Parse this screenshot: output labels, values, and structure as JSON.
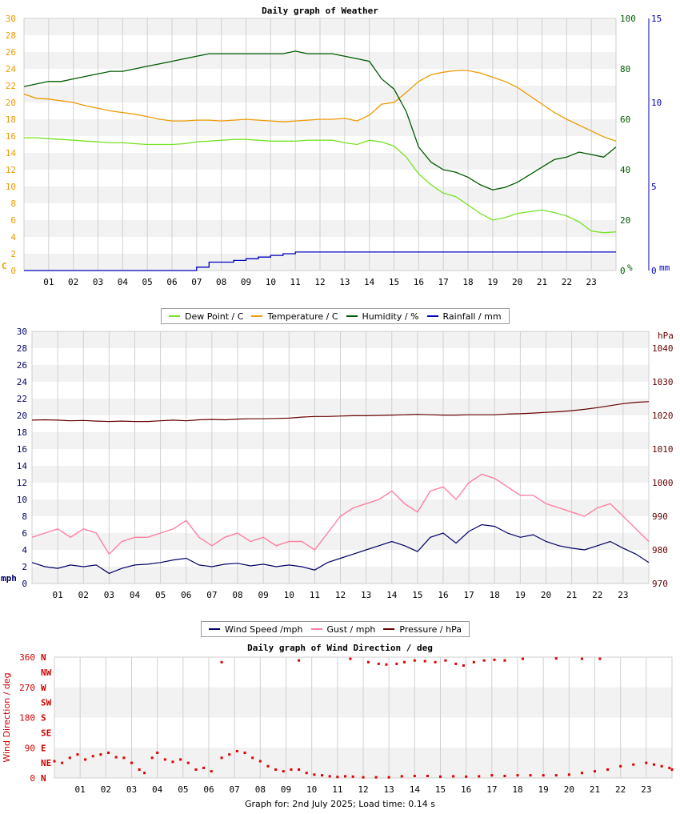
{
  "footer": "Graph for: 2nd July 2025; Load time: 0.14 s",
  "colors": {
    "dew": "#77e223",
    "temp": "#ee9a00",
    "hum": "#005a00",
    "rain": "#0000bb",
    "wind": "#000066",
    "gust": "#ff7fa0",
    "press": "#660000",
    "wdir": "#dd0000",
    "band": "#f2f2f2",
    "grid": "#d0d0d0"
  },
  "x_ticks": [
    "01",
    "02",
    "03",
    "04",
    "05",
    "06",
    "07",
    "08",
    "09",
    "10",
    "11",
    "12",
    "13",
    "14",
    "15",
    "16",
    "17",
    "18",
    "19",
    "20",
    "21",
    "22",
    "23"
  ],
  "legend1": [
    {
      "label": "Dew Point / C",
      "color": "#77e223"
    },
    {
      "label": "Temperature / C",
      "color": "#ee9a00"
    },
    {
      "label": "Humidity / %",
      "color": "#005a00"
    },
    {
      "label": "Rainfall / mm",
      "color": "#0000bb"
    }
  ],
  "legend2": [
    {
      "label": "Wind Speed /mph",
      "color": "#000066"
    },
    {
      "label": "Gust / mph",
      "color": "#ff7fa0"
    },
    {
      "label": "Pressure / hPa",
      "color": "#660000"
    }
  ],
  "chart_data": [
    {
      "type": "line",
      "title": "Daily graph of Weather",
      "xlabel": "",
      "x_ticks": [
        "01",
        "02",
        "03",
        "04",
        "05",
        "06",
        "07",
        "08",
        "09",
        "10",
        "11",
        "12",
        "13",
        "14",
        "15",
        "16",
        "17",
        "18",
        "19",
        "20",
        "21",
        "22",
        "23"
      ],
      "xlim": [
        0,
        24
      ],
      "grid": true,
      "legend": "bottom",
      "axes": {
        "left": {
          "unit_label": "C",
          "range": [
            0,
            30
          ],
          "ticks": [
            "0",
            "2",
            "4",
            "6",
            "8",
            "10",
            "12",
            "14",
            "16",
            "18",
            "20",
            "22",
            "24",
            "26",
            "28",
            "30"
          ],
          "color": "#ee9a00"
        },
        "right1": {
          "unit_label": "%",
          "range": [
            0,
            100
          ],
          "ticks": [
            "0",
            "20",
            "40",
            "60",
            "80",
            "100"
          ],
          "color": "#005a00"
        },
        "right2": {
          "unit_label": "mm",
          "range": [
            0,
            15
          ],
          "ticks": [
            "0",
            "5",
            "10",
            "15"
          ],
          "color": "#0000bb"
        }
      },
      "x": [
        0,
        0.5,
        1,
        1.5,
        2,
        2.5,
        3,
        3.5,
        4,
        4.5,
        5,
        5.5,
        6,
        6.5,
        7,
        7.5,
        8,
        8.5,
        9,
        9.5,
        10,
        10.5,
        11,
        11.5,
        12,
        12.5,
        13,
        13.5,
        14,
        14.5,
        15,
        15.5,
        16,
        16.5,
        17,
        17.5,
        18,
        18.5,
        19,
        19.5,
        20,
        20.5,
        21,
        21.5,
        22,
        22.5,
        23,
        23.5,
        24
      ],
      "series": [
        {
          "name": "Dew Point / C",
          "axis": "left",
          "color": "#77e223",
          "values": [
            15.8,
            15.8,
            15.7,
            15.6,
            15.5,
            15.4,
            15.3,
            15.2,
            15.2,
            15.1,
            15.0,
            15.0,
            15.0,
            15.1,
            15.3,
            15.4,
            15.5,
            15.6,
            15.6,
            15.5,
            15.4,
            15.4,
            15.4,
            15.5,
            15.5,
            15.5,
            15.2,
            15.0,
            15.5,
            15.3,
            14.8,
            13.5,
            11.5,
            10.2,
            9.2,
            8.8,
            7.8,
            6.8,
            6.0,
            6.3,
            6.8,
            7.0,
            7.2,
            6.9,
            6.5,
            5.8,
            4.7,
            4.5,
            4.6
          ]
        },
        {
          "name": "Temperature / C",
          "axis": "left",
          "color": "#ee9a00",
          "values": [
            21.0,
            20.5,
            20.4,
            20.2,
            20.0,
            19.6,
            19.3,
            19.0,
            18.8,
            18.6,
            18.3,
            18.0,
            17.8,
            17.8,
            17.9,
            17.9,
            17.8,
            17.9,
            18.0,
            17.9,
            17.8,
            17.7,
            17.8,
            17.9,
            18.0,
            18.0,
            18.1,
            17.8,
            18.5,
            19.8,
            20.0,
            21.2,
            22.5,
            23.3,
            23.6,
            23.8,
            23.8,
            23.5,
            23.0,
            22.5,
            21.8,
            20.8,
            19.8,
            18.8,
            18.0,
            17.3,
            16.6,
            15.9,
            15.4
          ]
        },
        {
          "name": "Humidity / %",
          "axis": "right1",
          "color": "#005a00",
          "values": [
            73,
            74,
            75,
            75,
            76,
            77,
            78,
            79,
            79,
            80,
            81,
            82,
            83,
            84,
            85,
            86,
            86,
            86,
            86,
            86,
            86,
            86,
            87,
            86,
            86,
            86,
            85,
            84,
            83,
            76,
            72,
            63,
            49,
            43,
            40,
            39,
            37,
            34,
            32,
            33,
            35,
            38,
            41,
            44,
            45,
            47,
            46,
            45,
            49
          ]
        },
        {
          "name": "Rainfall / mm",
          "axis": "right2",
          "color": "#0000bb",
          "values": [
            0,
            0,
            0,
            0,
            0,
            0,
            0,
            0,
            0,
            0,
            0,
            0,
            0,
            0,
            0.2,
            0.5,
            0.5,
            0.6,
            0.7,
            0.8,
            0.9,
            1.0,
            1.1,
            1.1,
            1.1,
            1.1,
            1.1,
            1.1,
            1.1,
            1.1,
            1.1,
            1.1,
            1.1,
            1.1,
            1.1,
            1.1,
            1.1,
            1.1,
            1.1,
            1.1,
            1.1,
            1.1,
            1.1,
            1.1,
            1.1,
            1.1,
            1.1,
            1.1,
            1.1
          ]
        }
      ]
    },
    {
      "type": "line",
      "title": "",
      "xlabel": "",
      "x_ticks": [
        "01",
        "02",
        "03",
        "04",
        "05",
        "06",
        "07",
        "08",
        "09",
        "10",
        "11",
        "12",
        "13",
        "14",
        "15",
        "16",
        "17",
        "18",
        "19",
        "20",
        "21",
        "22",
        "23"
      ],
      "xlim": [
        0,
        24
      ],
      "grid": true,
      "legend": "bottom",
      "axes": {
        "left": {
          "unit_label": "mph",
          "range": [
            0,
            30
          ],
          "ticks": [
            "0",
            "2",
            "4",
            "6",
            "8",
            "10",
            "12",
            "14",
            "16",
            "18",
            "20",
            "22",
            "24",
            "26",
            "28",
            "30"
          ],
          "color": "#000066"
        },
        "right": {
          "unit_label": "hPa",
          "range": [
            970,
            1045
          ],
          "ticks": [
            "970",
            "980",
            "990",
            "1000",
            "1010",
            "1020",
            "1030",
            "1040"
          ],
          "color": "#660000"
        }
      },
      "x": [
        0,
        0.5,
        1,
        1.5,
        2,
        2.5,
        3,
        3.5,
        4,
        4.5,
        5,
        5.5,
        6,
        6.5,
        7,
        7.5,
        8,
        8.5,
        9,
        9.5,
        10,
        10.5,
        11,
        11.5,
        12,
        12.5,
        13,
        13.5,
        14,
        14.5,
        15,
        15.5,
        16,
        16.5,
        17,
        17.5,
        18,
        18.5,
        19,
        19.5,
        20,
        20.5,
        21,
        21.5,
        22,
        22.5,
        23,
        23.5,
        24
      ],
      "series": [
        {
          "name": "Wind Speed /mph",
          "axis": "left",
          "color": "#000066",
          "values": [
            2.5,
            2.0,
            1.8,
            2.2,
            2.0,
            2.2,
            1.2,
            1.8,
            2.2,
            2.3,
            2.5,
            2.8,
            3.0,
            2.2,
            2.0,
            2.3,
            2.4,
            2.1,
            2.3,
            2.0,
            2.2,
            2.0,
            1.6,
            2.5,
            3.0,
            3.5,
            4.0,
            4.5,
            5.0,
            4.5,
            3.8,
            5.5,
            6.0,
            4.8,
            6.2,
            7.0,
            6.8,
            6.0,
            5.5,
            5.8,
            5.0,
            4.5,
            4.2,
            4.0,
            4.5,
            5.0,
            4.2,
            3.5,
            2.5
          ]
        },
        {
          "name": "Gust / mph",
          "axis": "left",
          "color": "#ff7fa0",
          "values": [
            5.5,
            6.0,
            6.5,
            5.5,
            6.5,
            6.0,
            3.5,
            5.0,
            5.5,
            5.5,
            6.0,
            6.5,
            7.5,
            5.5,
            4.5,
            5.5,
            6.0,
            5.0,
            5.5,
            4.5,
            5.0,
            5.0,
            4.0,
            6.0,
            8.0,
            9.0,
            9.5,
            10.0,
            11.0,
            9.5,
            8.5,
            11.0,
            11.5,
            10.0,
            12.0,
            13.0,
            12.5,
            11.5,
            10.5,
            10.5,
            9.5,
            9.0,
            8.5,
            8.0,
            9.0,
            9.5,
            8.0,
            6.5,
            5.0
          ]
        },
        {
          "name": "Pressure / hPa",
          "axis": "right",
          "color": "#660000",
          "values": [
            1018.6,
            1018.7,
            1018.6,
            1018.4,
            1018.5,
            1018.3,
            1018.2,
            1018.3,
            1018.2,
            1018.2,
            1018.4,
            1018.6,
            1018.4,
            1018.7,
            1018.8,
            1018.7,
            1018.9,
            1019.0,
            1019.0,
            1019.1,
            1019.2,
            1019.5,
            1019.7,
            1019.7,
            1019.8,
            1019.9,
            1019.9,
            1020.0,
            1020.1,
            1020.2,
            1020.3,
            1020.2,
            1020.1,
            1020.1,
            1020.2,
            1020.2,
            1020.2,
            1020.4,
            1020.5,
            1020.7,
            1020.9,
            1021.1,
            1021.4,
            1021.8,
            1022.3,
            1022.9,
            1023.5,
            1023.9,
            1024.1
          ]
        }
      ]
    },
    {
      "type": "scatter",
      "title": "Daily graph of Wind Direction / deg",
      "ylabel": "Wind Direction / deg",
      "xlabel": "",
      "x_ticks": [
        "01",
        "02",
        "03",
        "04",
        "05",
        "06",
        "07",
        "08",
        "09",
        "10",
        "11",
        "12",
        "13",
        "14",
        "15",
        "16",
        "17",
        "18",
        "19",
        "20",
        "21",
        "22",
        "23"
      ],
      "xlim": [
        0,
        24
      ],
      "ylim": [
        0,
        360
      ],
      "y_ticks": [
        "0",
        "90",
        "180",
        "270",
        "360"
      ],
      "compass_labels": [
        "N",
        "NE",
        "E",
        "SE",
        "S",
        "SW",
        "W",
        "NW",
        "N"
      ],
      "grid": true,
      "series": [
        {
          "name": "Wind Direction / deg",
          "color": "#dd0000",
          "points": [
            [
              0.0,
              50
            ],
            [
              0.3,
              45
            ],
            [
              0.6,
              60
            ],
            [
              0.9,
              70
            ],
            [
              1.2,
              55
            ],
            [
              1.5,
              65
            ],
            [
              1.8,
              70
            ],
            [
              2.1,
              75
            ],
            [
              2.4,
              62
            ],
            [
              2.7,
              60
            ],
            [
              3.0,
              45
            ],
            [
              3.3,
              25
            ],
            [
              3.5,
              15
            ],
            [
              3.8,
              60
            ],
            [
              4.0,
              75
            ],
            [
              4.3,
              55
            ],
            [
              4.6,
              48
            ],
            [
              4.9,
              55
            ],
            [
              5.2,
              45
            ],
            [
              5.5,
              25
            ],
            [
              5.8,
              30
            ],
            [
              6.1,
              20
            ],
            [
              6.5,
              60
            ],
            [
              6.8,
              70
            ],
            [
              7.1,
              80
            ],
            [
              7.4,
              75
            ],
            [
              7.7,
              60
            ],
            [
              8.0,
              50
            ],
            [
              8.3,
              35
            ],
            [
              8.6,
              25
            ],
            [
              8.9,
              20
            ],
            [
              9.2,
              25
            ],
            [
              9.5,
              25
            ],
            [
              9.8,
              15
            ],
            [
              10.1,
              10
            ],
            [
              10.4,
              8
            ],
            [
              10.7,
              5
            ],
            [
              11.0,
              3
            ],
            [
              11.3,
              5
            ],
            [
              11.6,
              4
            ],
            [
              12.0,
              2
            ],
            [
              12.5,
              2
            ],
            [
              13.0,
              2
            ],
            [
              13.5,
              5
            ],
            [
              14.0,
              6
            ],
            [
              14.5,
              6
            ],
            [
              15.0,
              4
            ],
            [
              15.5,
              5
            ],
            [
              16.0,
              4
            ],
            [
              16.5,
              5
            ],
            [
              17.0,
              8
            ],
            [
              17.5,
              6
            ],
            [
              18.0,
              8
            ],
            [
              18.5,
              8
            ],
            [
              19.0,
              8
            ],
            [
              19.5,
              8
            ],
            [
              20.0,
              10
            ],
            [
              20.5,
              15
            ],
            [
              21.0,
              20
            ],
            [
              21.5,
              25
            ],
            [
              22.0,
              35
            ],
            [
              22.5,
              40
            ],
            [
              23.0,
              45
            ],
            [
              23.3,
              40
            ],
            [
              23.6,
              35
            ],
            [
              23.9,
              30
            ],
            [
              24.0,
              25
            ],
            [
              6.5,
              345
            ],
            [
              9.5,
              350
            ],
            [
              11.5,
              355
            ],
            [
              12.2,
              345
            ],
            [
              12.6,
              340
            ],
            [
              12.9,
              338
            ],
            [
              13.3,
              340
            ],
            [
              13.6,
              345
            ],
            [
              14.0,
              350
            ],
            [
              14.4,
              348
            ],
            [
              14.8,
              345
            ],
            [
              15.2,
              350
            ],
            [
              15.6,
              340
            ],
            [
              15.9,
              335
            ],
            [
              16.3,
              345
            ],
            [
              16.7,
              350
            ],
            [
              17.1,
              352
            ],
            [
              17.5,
              350
            ],
            [
              18.2,
              355
            ],
            [
              19.5,
              356
            ],
            [
              20.5,
              355
            ],
            [
              21.2,
              355
            ]
          ]
        }
      ]
    }
  ]
}
